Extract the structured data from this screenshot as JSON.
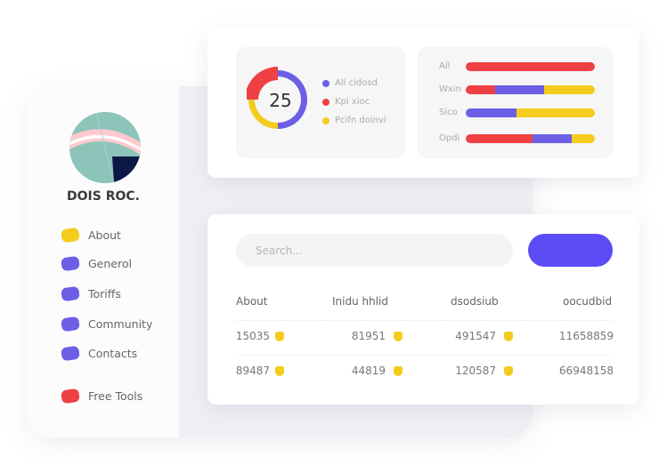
{
  "brand": {
    "name": "DOIS ROC."
  },
  "sidebar": {
    "items": [
      {
        "label": "About",
        "color": "#f4cc1e"
      },
      {
        "label": "Generol",
        "color": "#6c5fe6"
      },
      {
        "label": "Toriffs",
        "color": "#6c5fe6"
      },
      {
        "label": "Community",
        "color": "#6c5fe6"
      },
      {
        "label": "Contacts",
        "color": "#6c5fe6"
      },
      {
        "label": "Free Tools",
        "color": "#ef4044"
      }
    ]
  },
  "donut": {
    "value": "25",
    "segments": [
      {
        "label": "All cidosd",
        "color": "#6c5fe6",
        "fraction": 0.5
      },
      {
        "label": "Kpi xioc",
        "color": "#ef4044",
        "fraction": 0.25
      },
      {
        "label": "Pcifn doinvi",
        "color": "#f4cc1e",
        "fraction": 0.25
      }
    ]
  },
  "bars": [
    {
      "label": "All",
      "segments": [
        {
          "color": "#ef4044",
          "fraction": 1
        }
      ]
    },
    {
      "label": "Wxin",
      "segments": [
        {
          "color": "#ef4044",
          "fraction": 0.23
        },
        {
          "color": "#6c5fe6",
          "fraction": 0.38
        },
        {
          "color": "#f4cc1e",
          "fraction": 0.39
        }
      ]
    },
    {
      "label": "Sico",
      "segments": [
        {
          "color": "#6c5fe6",
          "fraction": 0.39
        },
        {
          "color": "#f4cc1e",
          "fraction": 0.61
        }
      ]
    },
    {
      "label": "Opdi",
      "segments": [
        {
          "color": "#ef4044",
          "fraction": 0.52
        },
        {
          "color": "#6c5fe6",
          "fraction": 0.3
        },
        {
          "color": "#f4cc1e",
          "fraction": 0.18
        }
      ]
    }
  ],
  "search": {
    "placeholder": "Search..."
  },
  "table": {
    "headers": [
      "About",
      "Inidu hhlid",
      "dsodsiub",
      "oocudbid"
    ],
    "rows": [
      [
        "15035",
        "81951",
        "491547",
        "11658859"
      ],
      [
        "89487",
        "44819",
        "120587",
        "66948158"
      ]
    ]
  }
}
